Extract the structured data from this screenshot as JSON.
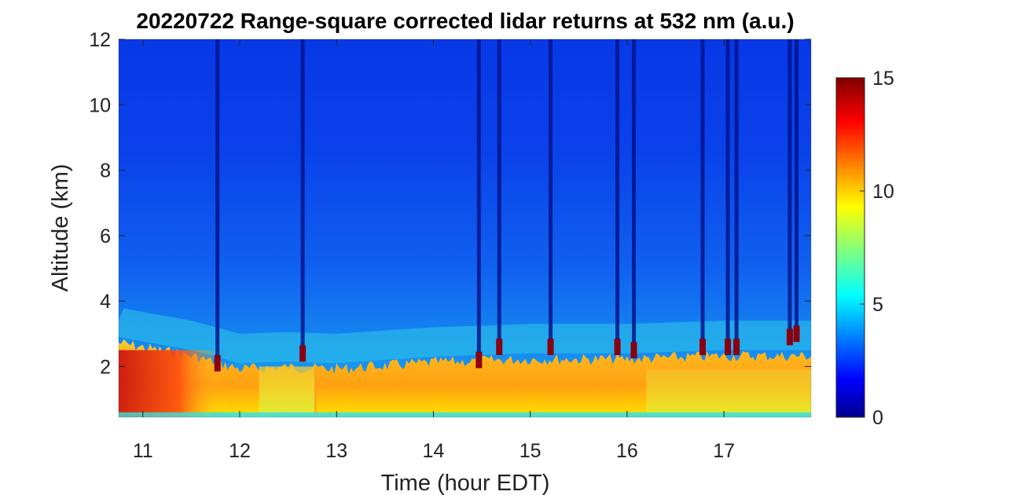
{
  "chart_data": {
    "type": "heatmap",
    "title": "20220722  Range-square corrected lidar returns at 532 nm (a.u.)",
    "xlabel": "Time (hour EDT)",
    "ylabel": "Altitude (km)",
    "xlim": [
      10.75,
      17.9
    ],
    "ylim": [
      0.45,
      12
    ],
    "xticks": [
      11,
      12,
      13,
      14,
      15,
      16,
      17
    ],
    "yticks": [
      2,
      4,
      6,
      8,
      10,
      12
    ],
    "colorbar": {
      "range": [
        0,
        15
      ],
      "ticks": [
        0,
        5,
        10,
        15
      ],
      "colormap": "jet"
    },
    "data_gap_start_hour": 12.78,
    "cloud_columns": [
      {
        "time": 11.77,
        "cloud_base_km": 2.1
      },
      {
        "time": 12.65,
        "cloud_base_km": 2.4
      },
      {
        "time": 14.47,
        "cloud_base_km": 2.2
      },
      {
        "time": 14.68,
        "cloud_base_km": 2.6
      },
      {
        "time": 15.21,
        "cloud_base_km": 2.6
      },
      {
        "time": 15.9,
        "cloud_base_km": 2.6
      },
      {
        "time": 16.07,
        "cloud_base_km": 2.5
      },
      {
        "time": 16.78,
        "cloud_base_km": 2.6
      },
      {
        "time": 17.04,
        "cloud_base_km": 2.6
      },
      {
        "time": 17.13,
        "cloud_base_km": 2.6
      },
      {
        "time": 17.68,
        "cloud_base_km": 2.9
      },
      {
        "time": 17.75,
        "cloud_base_km": 3.0
      }
    ],
    "boundary_layer_top_km": [
      {
        "time": 10.75,
        "value": 2.9
      },
      {
        "time": 11.5,
        "value": 2.5
      },
      {
        "time": 12.0,
        "value": 2.1
      },
      {
        "time": 12.5,
        "value": 2.15
      },
      {
        "time": 13.0,
        "value": 2.1
      },
      {
        "time": 14.0,
        "value": 2.3
      },
      {
        "time": 15.0,
        "value": 2.4
      },
      {
        "time": 16.0,
        "value": 2.4
      },
      {
        "time": 17.0,
        "value": 2.5
      },
      {
        "time": 17.9,
        "value": 2.5
      }
    ]
  }
}
